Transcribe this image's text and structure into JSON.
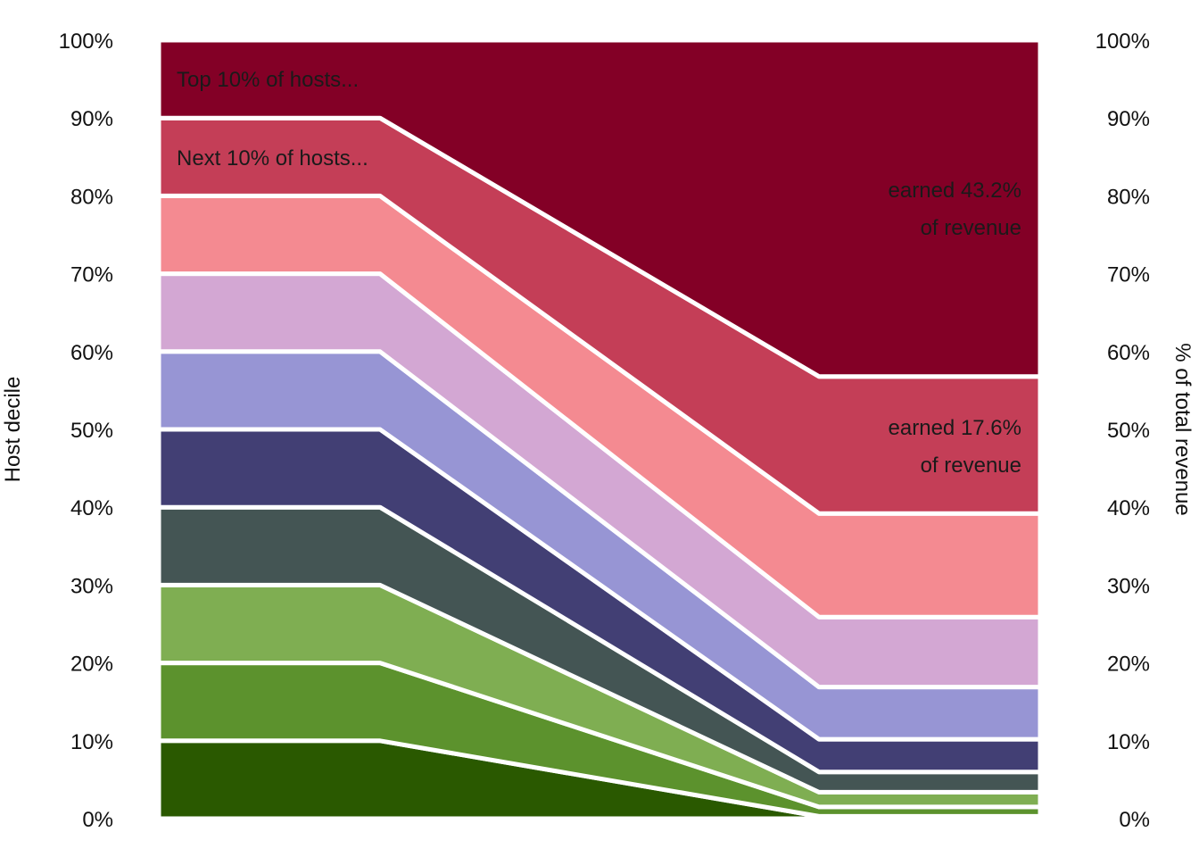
{
  "chart_data": {
    "type": "area",
    "x": [
      "Host decile",
      "% of total revenue"
    ],
    "ylabel_left": "Host decile",
    "ylabel_right": "% of total revenue",
    "ylim": [
      0,
      100
    ],
    "yticks": [
      "0%",
      "10%",
      "20%",
      "30%",
      "40%",
      "50%",
      "60%",
      "70%",
      "80%",
      "90%",
      "100%"
    ],
    "grid": false,
    "legend": "none",
    "stacking": "bottom decile first, top decile last",
    "series": [
      {
        "left": 10,
        "right": 0.3,
        "color": "#2a5900"
      },
      {
        "left": 10,
        "right": 1.2,
        "color": "#5c922d"
      },
      {
        "left": 10,
        "right": 1.9,
        "color": "#7fae52"
      },
      {
        "left": 10,
        "right": 2.6,
        "color": "#445554"
      },
      {
        "left": 10,
        "right": 4.2,
        "color": "#423f74"
      },
      {
        "left": 10,
        "right": 6.7,
        "color": "#9795d4"
      },
      {
        "left": 10,
        "right": 9.0,
        "color": "#d3a7d3"
      },
      {
        "left": 10,
        "right": 13.3,
        "color": "#f48a91"
      },
      {
        "left": 10,
        "right": 17.6,
        "color": "#c43e57"
      },
      {
        "left": 10,
        "right": 43.2,
        "color": "#830026"
      }
    ],
    "annotations": {
      "top_left": "Top 10% of hosts...",
      "next_left": "Next 10% of hosts...",
      "top_right_line1": "earned 43.2%",
      "top_right_line2": "of revenue",
      "next_right_line1": "earned 17.6%",
      "next_right_line2": "of revenue"
    }
  }
}
